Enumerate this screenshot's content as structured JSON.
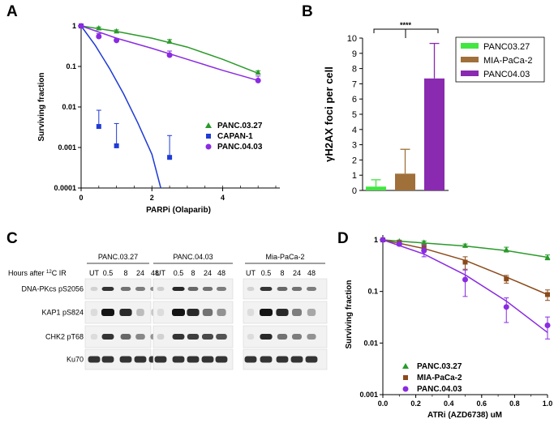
{
  "panels": {
    "a": "A",
    "b": "B",
    "c": "C",
    "d": "D"
  },
  "chart_data": [
    {
      "id": "A",
      "type": "line",
      "scale": "log",
      "title": "",
      "xlabel": "PARPi (Olaparib)",
      "ylabel": "Surviving fraction",
      "xlim": [
        0,
        5.5
      ],
      "ylim": [
        0.0001,
        1
      ],
      "xticks": [
        0,
        2,
        4
      ],
      "yticks": [
        {
          "v": 1,
          "label": "1"
        },
        {
          "v": 0.1,
          "label": "0.1"
        },
        {
          "v": 0.01,
          "label": "0.01"
        },
        {
          "v": 0.001,
          "label": "0.001"
        },
        {
          "v": 0.0001,
          "label": "0.0001"
        }
      ],
      "series": [
        {
          "name": "PANC.03.27",
          "color": "#2a9a2a",
          "marker": "triangle",
          "points": [
            [
              0,
              1,
              0
            ],
            [
              0.5,
              0.89,
              0.05
            ],
            [
              1,
              0.75,
              0.05
            ],
            [
              2.5,
              0.42,
              0.04
            ],
            [
              5,
              0.072,
              0.006
            ]
          ],
          "fit": [
            [
              0,
              1
            ],
            [
              1,
              0.73
            ],
            [
              2,
              0.5
            ],
            [
              3,
              0.3
            ],
            [
              4,
              0.15
            ],
            [
              5,
              0.068
            ]
          ]
        },
        {
          "name": "CAPAN-1",
          "color": "#1f3bd6",
          "marker": "square",
          "points": [
            [
              0,
              1,
              0
            ],
            [
              0.5,
              0.0033,
              0.005
            ],
            [
              1,
              0.0011,
              0.0028
            ],
            [
              2.5,
              0.00057,
              0.0014
            ]
          ],
          "fit": [
            [
              0,
              1
            ],
            [
              0.4,
              0.33
            ],
            [
              0.8,
              0.09
            ],
            [
              1.2,
              0.021
            ],
            [
              1.6,
              0.0041
            ],
            [
              2,
              0.00068
            ],
            [
              2.25,
              0.0001
            ]
          ]
        },
        {
          "name": "PANC.04.03",
          "color": "#8a2be2",
          "marker": "circle",
          "points": [
            [
              0,
              1,
              0
            ],
            [
              0.5,
              0.55,
              0.1
            ],
            [
              1,
              0.44,
              0.04
            ],
            [
              2.5,
              0.19,
              0.05
            ],
            [
              5,
              0.045,
              0.013
            ]
          ],
          "fit": [
            [
              0,
              1
            ],
            [
              1,
              0.5
            ],
            [
              2,
              0.28
            ],
            [
              3,
              0.15
            ],
            [
              4,
              0.08
            ],
            [
              5,
              0.045
            ]
          ]
        }
      ]
    },
    {
      "id": "B",
      "type": "bar",
      "title": "",
      "xlabel": "",
      "ylabel": "γH2AX foci per cell",
      "ylim": [
        0,
        10
      ],
      "yticks": [
        0,
        1,
        2,
        3,
        4,
        5,
        6,
        7,
        8,
        9,
        10
      ],
      "categories": [
        "PANC03.27",
        "MIA-PaCa-2",
        "PANC04.03"
      ],
      "values": [
        0.25,
        1.1,
        7.35
      ],
      "errors": [
        0.45,
        1.6,
        2.3
      ],
      "colors": [
        "#41e641",
        "#a0703a",
        "#8a2ab0"
      ],
      "annotation": "****"
    },
    {
      "id": "C",
      "type": "blot",
      "groups": [
        "PANC.03.27",
        "PANC.04.03",
        "Mia-PaCa-2"
      ],
      "row_prefix": "Hours after",
      "row_sup": "12",
      "row_suffix": "C IR",
      "lanes": [
        "UT",
        "0.5",
        "8",
        "24",
        "48"
      ],
      "bands": [
        {
          "name": "DNA-PKcs pS2056",
          "intensity": [
            [
              0.1,
              0.85,
              0.55,
              0.5,
              0.45
            ],
            [
              0.12,
              0.9,
              0.6,
              0.55,
              0.5
            ],
            [
              0.1,
              0.85,
              0.6,
              0.55,
              0.5
            ]
          ]
        },
        {
          "name": "KAP1 pS824",
          "intensity": [
            [
              0.05,
              1.0,
              0.9,
              0.2,
              0.15
            ],
            [
              0.05,
              1.0,
              0.9,
              0.55,
              0.4
            ],
            [
              0.05,
              1.0,
              0.9,
              0.5,
              0.3
            ]
          ]
        },
        {
          "name": "CHK2 pT68",
          "intensity": [
            [
              0.05,
              0.85,
              0.6,
              0.45,
              0.4
            ],
            [
              0.1,
              0.85,
              0.8,
              0.75,
              0.7
            ],
            [
              0.05,
              0.9,
              0.55,
              0.5,
              0.4
            ]
          ]
        },
        {
          "name": "Ku70",
          "intensity": [
            [
              0.85,
              0.85,
              0.85,
              0.85,
              0.85
            ],
            [
              0.85,
              0.85,
              0.85,
              0.85,
              0.85
            ],
            [
              0.85,
              0.85,
              0.85,
              0.85,
              0.85
            ]
          ]
        }
      ]
    },
    {
      "id": "D",
      "type": "line",
      "scale": "log",
      "title": "",
      "xlabel": "ATRi (AZD6738) uM",
      "ylabel": "Surviving fraction",
      "xlim": [
        0,
        1
      ],
      "ylim": [
        0.001,
        1
      ],
      "xticks": [
        {
          "v": 0,
          "label": "0.0"
        },
        {
          "v": 0.2,
          "label": "0.2"
        },
        {
          "v": 0.4,
          "label": "0.4"
        },
        {
          "v": 0.6,
          "label": "0.6"
        },
        {
          "v": 0.8,
          "label": "0.8"
        },
        {
          "v": 1,
          "label": "1.0"
        }
      ],
      "yticks": [
        {
          "v": 1,
          "label": "1"
        },
        {
          "v": 0.1,
          "label": "0.1"
        },
        {
          "v": 0.01,
          "label": "0.01"
        },
        {
          "v": 0.001,
          "label": "0.001"
        }
      ],
      "series": [
        {
          "name": "PANC.03.27",
          "color": "#2a9a2a",
          "marker": "triangle",
          "points": [
            [
              0,
              1,
              0
            ],
            [
              0.1,
              0.95,
              0.04
            ],
            [
              0.25,
              0.9,
              0.05
            ],
            [
              0.5,
              0.78,
              0.05
            ],
            [
              0.75,
              0.65,
              0.07
            ],
            [
              1,
              0.46,
              0.05
            ]
          ],
          "fit": [
            [
              0,
              1
            ],
            [
              0.25,
              0.87
            ],
            [
              0.5,
              0.76
            ],
            [
              0.75,
              0.62
            ],
            [
              1,
              0.46
            ]
          ]
        },
        {
          "name": "MIA-PaCa-2",
          "color": "#8b4a1a",
          "marker": "square",
          "points": [
            [
              0,
              1,
              0
            ],
            [
              0.1,
              0.88,
              0.05
            ],
            [
              0.25,
              0.7,
              0.1
            ],
            [
              0.5,
              0.37,
              0.1
            ],
            [
              0.75,
              0.175,
              0.03
            ],
            [
              1,
              0.087,
              0.02
            ]
          ],
          "fit": [
            [
              0,
              1
            ],
            [
              0.25,
              0.68
            ],
            [
              0.5,
              0.4
            ],
            [
              0.75,
              0.19
            ],
            [
              1,
              0.087
            ]
          ]
        },
        {
          "name": "PANC.04.03",
          "color": "#8a2be2",
          "marker": "circle",
          "points": [
            [
              0,
              1,
              0
            ],
            [
              0.1,
              0.83,
              0.06
            ],
            [
              0.25,
              0.62,
              0.15
            ],
            [
              0.5,
              0.17,
              0.09
            ],
            [
              0.75,
              0.05,
              0.025
            ],
            [
              1,
              0.022,
              0.01
            ]
          ],
          "fit": [
            [
              0,
              1
            ],
            [
              0.25,
              0.53
            ],
            [
              0.5,
              0.21
            ],
            [
              0.75,
              0.065
            ],
            [
              1,
              0.016
            ]
          ]
        }
      ]
    }
  ]
}
